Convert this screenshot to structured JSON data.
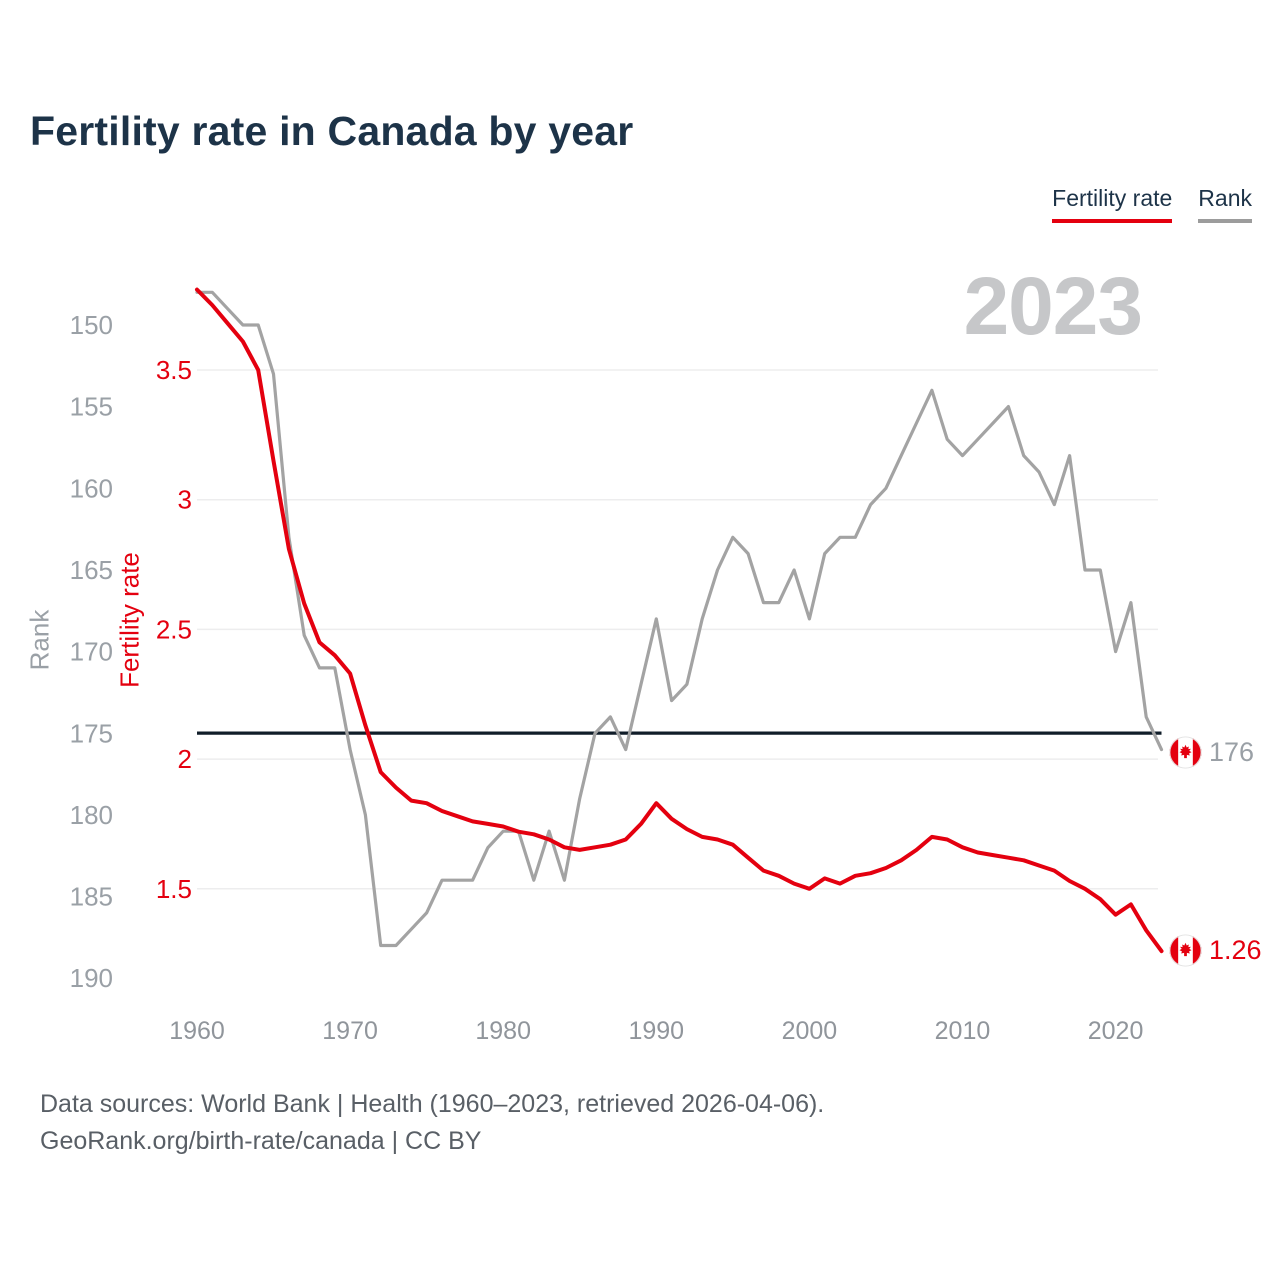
{
  "header": {
    "title": "Fertility rate in Canada by year"
  },
  "legend": {
    "items": [
      {
        "label": "Fertility rate",
        "color": "#e4000f"
      },
      {
        "label": "Rank",
        "color": "#9c9c9c"
      }
    ]
  },
  "chart_data": {
    "type": "line",
    "title": "Fertility rate in Canada by year",
    "watermark": "2023",
    "grid": "horizontal",
    "legend_position": "top-right",
    "x": [
      1960,
      1961,
      1962,
      1963,
      1964,
      1965,
      1966,
      1967,
      1968,
      1969,
      1970,
      1971,
      1972,
      1973,
      1974,
      1975,
      1976,
      1977,
      1978,
      1979,
      1980,
      1981,
      1982,
      1983,
      1984,
      1985,
      1986,
      1987,
      1988,
      1989,
      1990,
      1991,
      1992,
      1993,
      1994,
      1995,
      1996,
      1997,
      1998,
      1999,
      2000,
      2001,
      2002,
      2003,
      2004,
      2005,
      2006,
      2007,
      2008,
      2009,
      2010,
      2011,
      2012,
      2013,
      2014,
      2015,
      2016,
      2017,
      2018,
      2019,
      2020,
      2021,
      2022,
      2023
    ],
    "series": [
      {
        "name": "Fertility rate",
        "axis": "fertility",
        "color": "#e4000f",
        "end_label": "1.26",
        "values": [
          3.81,
          3.75,
          3.68,
          3.61,
          3.5,
          3.15,
          2.81,
          2.6,
          2.45,
          2.4,
          2.33,
          2.13,
          1.95,
          1.89,
          1.84,
          1.83,
          1.8,
          1.78,
          1.76,
          1.75,
          1.74,
          1.72,
          1.71,
          1.69,
          1.66,
          1.65,
          1.66,
          1.67,
          1.69,
          1.75,
          1.83,
          1.77,
          1.73,
          1.7,
          1.69,
          1.67,
          1.62,
          1.57,
          1.55,
          1.52,
          1.5,
          1.54,
          1.52,
          1.55,
          1.56,
          1.58,
          1.61,
          1.65,
          1.7,
          1.69,
          1.66,
          1.64,
          1.63,
          1.62,
          1.61,
          1.59,
          1.57,
          1.53,
          1.5,
          1.46,
          1.4,
          1.44,
          1.34,
          1.26
        ]
      },
      {
        "name": "Rank",
        "axis": "rank",
        "color": "#a3a3a3",
        "end_label": "176",
        "values": [
          148,
          148,
          149,
          150,
          150,
          153,
          163,
          169,
          171,
          171,
          176,
          180,
          188,
          188,
          187,
          186,
          184,
          184,
          184,
          182,
          181,
          181,
          184,
          181,
          184,
          179,
          175,
          174,
          176,
          172,
          168,
          173,
          172,
          168,
          165,
          163,
          164,
          167,
          167,
          165,
          168,
          164,
          163,
          163,
          161,
          160,
          158,
          156,
          154,
          157,
          158,
          157,
          156,
          155,
          158,
          159,
          161,
          158,
          165,
          165,
          170,
          167,
          174,
          176
        ]
      }
    ],
    "reference_line": {
      "axis": "fertility",
      "value": 2.1,
      "color": "#101d29"
    },
    "axes": {
      "x": {
        "ticks": [
          1960,
          1970,
          1980,
          1990,
          2000,
          2010,
          2020
        ]
      },
      "fertility": {
        "title": "Fertility rate",
        "color": "#e4000f",
        "ticks": [
          3.5,
          3,
          2.5,
          2,
          1.5
        ],
        "range": [
          1.2,
          3.9
        ]
      },
      "rank": {
        "title": "Rank",
        "color": "#9aa0a6",
        "ticks": [
          150,
          155,
          160,
          165,
          170,
          175,
          180,
          185,
          190
        ],
        "range": [
          147,
          192
        ],
        "inverted": true
      }
    }
  },
  "footer": {
    "line1": "Data sources: World Bank | Health (1960–2023, retrieved 2026-04-06).",
    "line2": "GeoRank.org/birth-rate/canada | CC BY"
  }
}
